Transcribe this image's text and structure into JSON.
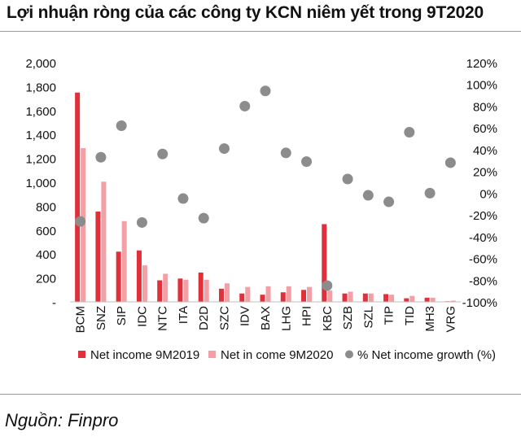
{
  "title": "Lợi nhuận ròng của các công ty KCN niêm yết trong 9T2020",
  "source": "Nguồn: Finpro",
  "chart_data": {
    "type": "bar",
    "categories": [
      "BCM",
      "SNZ",
      "SIP",
      "IDC",
      "NTC",
      "ITA",
      "D2D",
      "SZC",
      "IDV",
      "BAX",
      "LHG",
      "HPI",
      "KBC",
      "SZB",
      "SZL",
      "TIP",
      "TID",
      "MH3",
      "VRG"
    ],
    "series": [
      {
        "name": "Net income 9M2019",
        "type": "bar",
        "axis": "left",
        "color": "#e0303a",
        "values": [
          1750,
          755,
          420,
          430,
          180,
          195,
          245,
          110,
          70,
          60,
          80,
          100,
          650,
          70,
          70,
          65,
          30,
          35,
          5
        ]
      },
      {
        "name": "Net in come 9M2020",
        "type": "bar",
        "axis": "left",
        "color": "#f2a0a5",
        "values": [
          1285,
          1005,
          675,
          305,
          235,
          185,
          185,
          155,
          125,
          130,
          130,
          125,
          95,
          85,
          70,
          60,
          50,
          35,
          10
        ]
      },
      {
        "name": "% Net income growth (%)",
        "type": "scatter",
        "axis": "right",
        "color": "#8c8c8c",
        "values": [
          -26,
          33,
          62,
          -27,
          36,
          -5,
          -23,
          41,
          80,
          94,
          37,
          29,
          -85,
          13,
          -2,
          -8,
          56,
          0,
          28
        ]
      }
    ],
    "y_left": {
      "ylim": [
        0,
        2000
      ],
      "ticks": [
        0,
        200,
        400,
        600,
        800,
        1000,
        1200,
        1400,
        1600,
        1800,
        2000
      ],
      "tick_labels": [
        "-",
        "200",
        "400",
        "600",
        "800",
        "1,000",
        "1,200",
        "1,400",
        "1,600",
        "1,800",
        "2,000"
      ]
    },
    "y_right": {
      "ylim": [
        -100,
        120
      ],
      "ticks": [
        -100,
        -80,
        -60,
        -40,
        -20,
        0,
        20,
        40,
        60,
        80,
        100,
        120
      ],
      "tick_labels": [
        "-100%",
        "-80%",
        "-60%",
        "-40%",
        "-20%",
        "0%",
        "20%",
        "40%",
        "60%",
        "80%",
        "100%",
        "120%"
      ]
    },
    "legend_position": "bottom",
    "grid": false
  }
}
